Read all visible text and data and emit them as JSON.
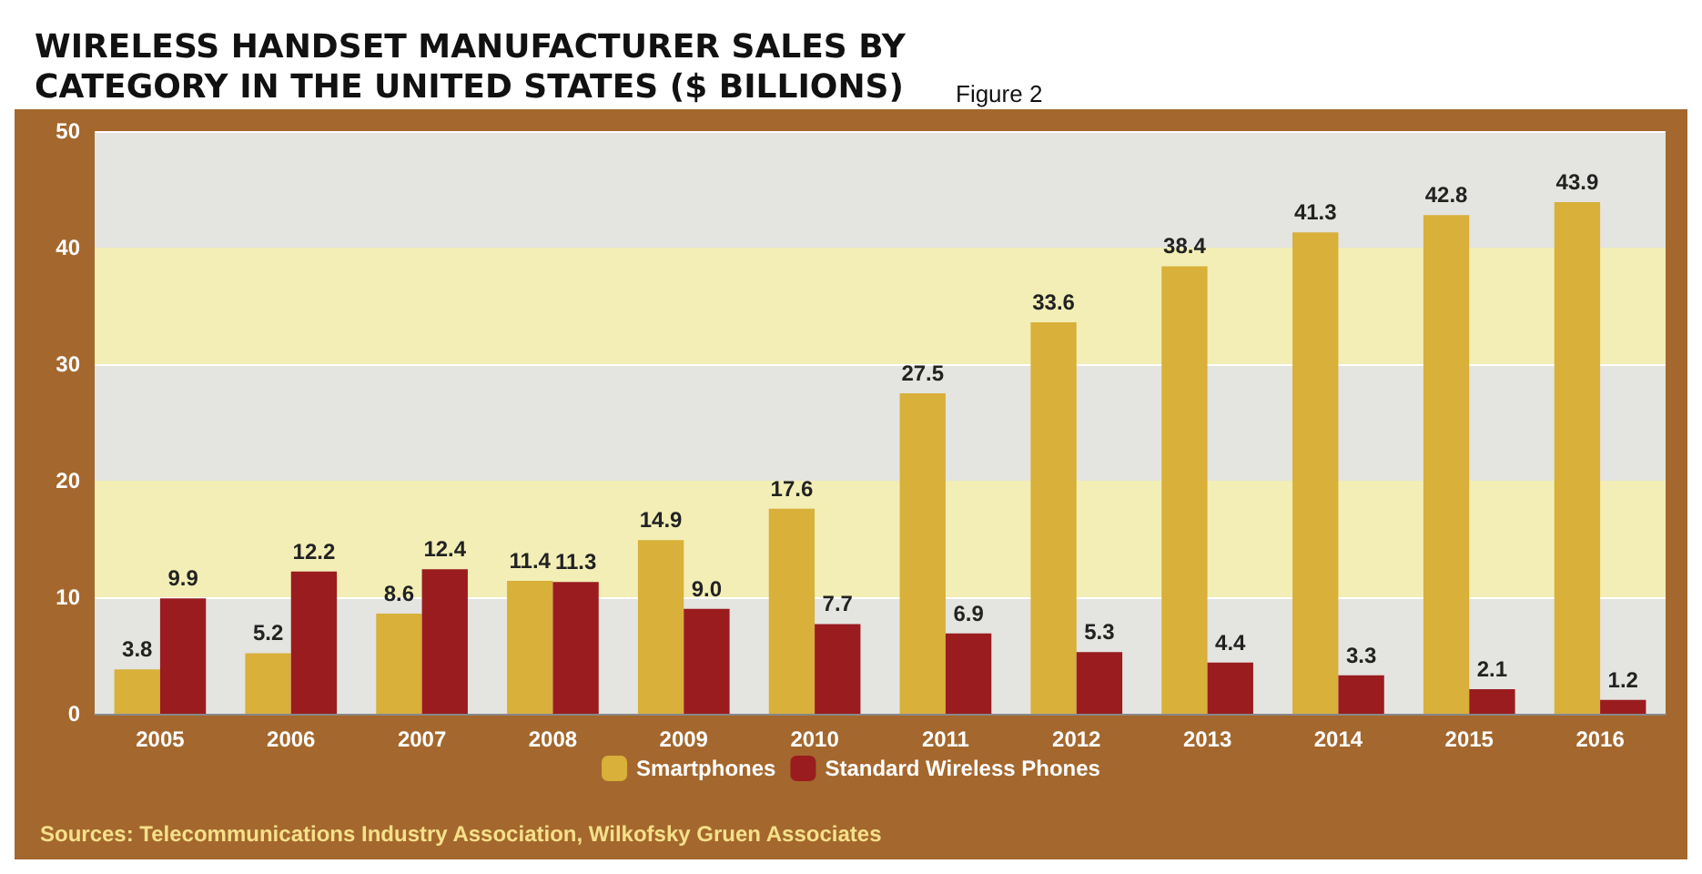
{
  "chart_data": {
    "type": "bar",
    "title": "WIRELESS HANDSET MANUFACTURER SALES BY CATEGORY IN THE UNITED STATES ($ BILLIONS)",
    "subtitle": "Figure 2",
    "categories": [
      "2005",
      "2006",
      "2007",
      "2008",
      "2009",
      "2010",
      "2011",
      "2012",
      "2013",
      "2014",
      "2015",
      "2016"
    ],
    "series": [
      {
        "name": "Smartphones",
        "color": "#d8b03a",
        "values": [
          3.8,
          5.2,
          8.6,
          11.4,
          14.9,
          17.6,
          27.5,
          33.6,
          38.4,
          41.3,
          42.8,
          43.9
        ],
        "value_labels": [
          "3.8",
          "5.2",
          "8.6",
          "11.4",
          "14.9",
          "17.6",
          "27.5",
          "33.6",
          "38.4",
          "41.3",
          "42.8",
          "43.9"
        ]
      },
      {
        "name": "Standard Wireless Phones",
        "color": "#9a1c1f",
        "values": [
          9.9,
          12.2,
          12.4,
          11.3,
          9.0,
          7.7,
          6.9,
          5.3,
          4.4,
          3.3,
          2.1,
          1.2
        ],
        "value_labels": [
          "9.9",
          "12.2",
          "12.4",
          "11.3",
          "9.0",
          "7.7",
          "6.9",
          "5.3",
          "4.4",
          "3.3",
          "2.1",
          "1.2"
        ]
      }
    ],
    "ylim": [
      0,
      50
    ],
    "yticks": [
      0,
      10,
      20,
      30,
      40,
      50
    ],
    "grid": true,
    "legend": "bottom",
    "bands": [
      {
        "axis": "y",
        "from": 10,
        "to": 20,
        "color": "#f2eeb6"
      },
      {
        "axis": "y",
        "from": 30,
        "to": 40,
        "color": "#f2eeb6"
      }
    ],
    "annotations": [
      "Sources: Telecommunications Industry Association, Wilkofsky Gruen Associates"
    ]
  }
}
